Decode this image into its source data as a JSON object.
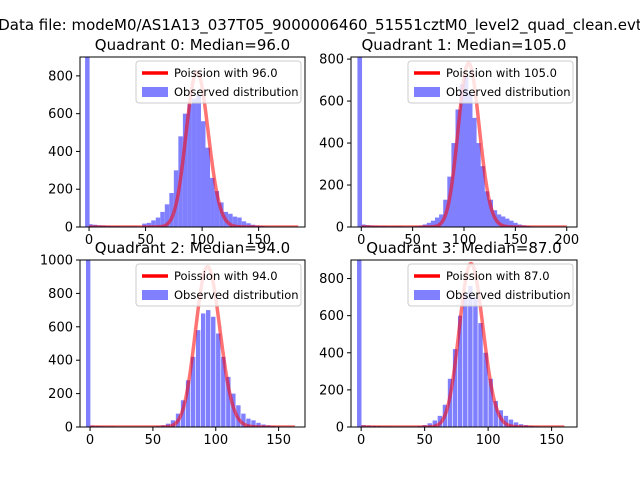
{
  "figure": {
    "suptitle": "Data file: modeM0/AS1A13_037T05_9000006460_51551cztM0_level2_quad_clean.evt"
  },
  "colors": {
    "observed": "#8080ff",
    "poisson": "#ff0000",
    "axes": "#000000"
  },
  "chart_data": [
    {
      "type": "bar",
      "title": "Quadrant 0: Median=96.0",
      "xlim": [
        -8,
        191
      ],
      "ylim": [
        0,
        900
      ],
      "xticks": [
        0,
        50,
        100,
        150
      ],
      "yticks": [
        0,
        200,
        400,
        600,
        800
      ],
      "bin_width": 4,
      "legend_position": "upper-right",
      "series": [
        {
          "name": "Observed distribution",
          "kind": "hist",
          "bins": [
            [
              -1.5,
              900
            ],
            [
              1,
              15
            ],
            [
              5,
              12
            ],
            [
              9,
              9
            ],
            [
              13,
              8
            ],
            [
              17,
              6
            ],
            [
              21,
              5
            ],
            [
              25,
              5
            ],
            [
              29,
              4
            ],
            [
              33,
              4
            ],
            [
              37,
              4
            ],
            [
              41,
              4
            ],
            [
              45,
              3
            ],
            [
              49,
              18
            ],
            [
              53,
              22
            ],
            [
              57,
              35
            ],
            [
              61,
              50
            ],
            [
              65,
              80
            ],
            [
              69,
              120
            ],
            [
              73,
              180
            ],
            [
              77,
              300
            ],
            [
              81,
              480
            ],
            [
              85,
              600
            ],
            [
              89,
              650
            ],
            [
              93,
              680
            ],
            [
              97,
              700
            ],
            [
              101,
              560
            ],
            [
              105,
              420
            ],
            [
              109,
              260
            ],
            [
              113,
              190
            ],
            [
              117,
              130
            ],
            [
              121,
              80
            ],
            [
              125,
              70
            ],
            [
              129,
              55
            ],
            [
              133,
              50
            ],
            [
              137,
              30
            ],
            [
              141,
              20
            ],
            [
              145,
              12
            ],
            [
              149,
              8
            ],
            [
              153,
              5
            ],
            [
              157,
              3
            ],
            [
              161,
              2
            ],
            [
              165,
              2
            ],
            [
              169,
              1
            ],
            [
              173,
              1
            ],
            [
              177,
              1
            ],
            [
              181,
              1
            ],
            [
              185,
              1
            ]
          ]
        },
        {
          "name": "Poission with 96.0",
          "kind": "poisson",
          "lambda": 96.0,
          "peak": 820,
          "x_range": [
            0,
            185
          ]
        }
      ]
    },
    {
      "type": "bar",
      "title": "Quadrant 1: Median=105.0",
      "xlim": [
        -10,
        210
      ],
      "ylim": [
        0,
        810
      ],
      "xticks": [
        0,
        50,
        100,
        150,
        200
      ],
      "yticks": [
        0,
        200,
        400,
        600,
        800
      ],
      "bin_width": 4.5,
      "legend_position": "upper-right",
      "series": [
        {
          "name": "Observed distribution",
          "kind": "hist",
          "bins": [
            [
              -1.5,
              810
            ],
            [
              2,
              12
            ],
            [
              6,
              9
            ],
            [
              10,
              7
            ],
            [
              14,
              6
            ],
            [
              18,
              5
            ],
            [
              22,
              5
            ],
            [
              26,
              4
            ],
            [
              30,
              4
            ],
            [
              34,
              4
            ],
            [
              38,
              4
            ],
            [
              42,
              3
            ],
            [
              46,
              3
            ],
            [
              50,
              3
            ],
            [
              54,
              4
            ],
            [
              58,
              6
            ],
            [
              62,
              12
            ],
            [
              66,
              20
            ],
            [
              70,
              30
            ],
            [
              74,
              45
            ],
            [
              78,
              60
            ],
            [
              82,
              130
            ],
            [
              86,
              240
            ],
            [
              90,
              400
            ],
            [
              94,
              560
            ],
            [
              98,
              680
            ],
            [
              102,
              720
            ],
            [
              106,
              640
            ],
            [
              110,
              520
            ],
            [
              114,
              400
            ],
            [
              118,
              290
            ],
            [
              122,
              170
            ],
            [
              126,
              130
            ],
            [
              130,
              80
            ],
            [
              134,
              60
            ],
            [
              138,
              50
            ],
            [
              142,
              40
            ],
            [
              146,
              30
            ],
            [
              150,
              20
            ],
            [
              154,
              12
            ],
            [
              158,
              8
            ],
            [
              162,
              5
            ],
            [
              166,
              3
            ],
            [
              170,
              2
            ],
            [
              174,
              2
            ],
            [
              178,
              1
            ],
            [
              182,
              1
            ],
            [
              186,
              1
            ],
            [
              190,
              1
            ],
            [
              194,
              1
            ],
            [
              198,
              1
            ]
          ]
        },
        {
          "name": "Poission with 105.0",
          "kind": "poisson",
          "lambda": 105.0,
          "peak": 780,
          "x_range": [
            0,
            200
          ]
        }
      ]
    },
    {
      "type": "bar",
      "title": "Quadrant 2: Median=94.0",
      "xlim": [
        -8,
        171
      ],
      "ylim": [
        0,
        1000
      ],
      "xticks": [
        0,
        50,
        100,
        150
      ],
      "yticks": [
        0,
        200,
        400,
        600,
        800,
        1000
      ],
      "bin_width": 3.5,
      "legend_position": "upper-right",
      "series": [
        {
          "name": "Observed distribution",
          "kind": "hist",
          "bins": [
            [
              -1.5,
              1000
            ],
            [
              2,
              8
            ],
            [
              6,
              6
            ],
            [
              10,
              5
            ],
            [
              14,
              4
            ],
            [
              18,
              4
            ],
            [
              22,
              3
            ],
            [
              26,
              3
            ],
            [
              30,
              3
            ],
            [
              34,
              3
            ],
            [
              38,
              3
            ],
            [
              42,
              3
            ],
            [
              46,
              3
            ],
            [
              50,
              3
            ],
            [
              54,
              5
            ],
            [
              58,
              10
            ],
            [
              62,
              20
            ],
            [
              66,
              40
            ],
            [
              70,
              80
            ],
            [
              74,
              160
            ],
            [
              78,
              280
            ],
            [
              82,
              420
            ],
            [
              86,
              580
            ],
            [
              90,
              680
            ],
            [
              94,
              700
            ],
            [
              98,
              660
            ],
            [
              102,
              560
            ],
            [
              106,
              420
            ],
            [
              110,
              300
            ],
            [
              114,
              200
            ],
            [
              118,
              130
            ],
            [
              122,
              80
            ],
            [
              126,
              50
            ],
            [
              130,
              40
            ],
            [
              134,
              25
            ],
            [
              138,
              15
            ],
            [
              142,
              10
            ],
            [
              146,
              6
            ],
            [
              150,
              4
            ],
            [
              154,
              2
            ],
            [
              158,
              1
            ],
            [
              162,
              1
            ]
          ]
        },
        {
          "name": "Poission with 94.0",
          "kind": "poisson",
          "lambda": 94.0,
          "peak": 960,
          "x_range": [
            0,
            163
          ]
        }
      ]
    },
    {
      "type": "bar",
      "title": "Quadrant 3: Median=87.0",
      "xlim": [
        -8,
        170
      ],
      "ylim": [
        0,
        900
      ],
      "xticks": [
        0,
        50,
        100,
        150
      ],
      "yticks": [
        0,
        200,
        400,
        600,
        800
      ],
      "bin_width": 3.5,
      "legend_position": "upper-right",
      "series": [
        {
          "name": "Observed distribution",
          "kind": "hist",
          "bins": [
            [
              -1.5,
              900
            ],
            [
              2,
              10
            ],
            [
              6,
              8
            ],
            [
              10,
              6
            ],
            [
              14,
              5
            ],
            [
              18,
              4
            ],
            [
              22,
              4
            ],
            [
              26,
              3
            ],
            [
              30,
              3
            ],
            [
              34,
              3
            ],
            [
              38,
              3
            ],
            [
              42,
              3
            ],
            [
              46,
              5
            ],
            [
              50,
              10
            ],
            [
              54,
              20
            ],
            [
              58,
              35
            ],
            [
              62,
              60
            ],
            [
              66,
              120
            ],
            [
              70,
              260
            ],
            [
              74,
              420
            ],
            [
              78,
              600
            ],
            [
              82,
              720
            ],
            [
              86,
              760
            ],
            [
              90,
              700
            ],
            [
              94,
              560
            ],
            [
              98,
              400
            ],
            [
              102,
              260
            ],
            [
              106,
              140
            ],
            [
              110,
              90
            ],
            [
              114,
              60
            ],
            [
              118,
              40
            ],
            [
              122,
              25
            ],
            [
              126,
              15
            ],
            [
              130,
              10
            ],
            [
              134,
              6
            ],
            [
              138,
              4
            ],
            [
              142,
              2
            ],
            [
              146,
              1
            ],
            [
              150,
              1
            ],
            [
              154,
              1
            ],
            [
              158,
              1
            ]
          ]
        },
        {
          "name": "Poission with 87.0",
          "kind": "poisson",
          "lambda": 87.0,
          "peak": 880,
          "x_range": [
            0,
            160
          ]
        }
      ]
    }
  ]
}
